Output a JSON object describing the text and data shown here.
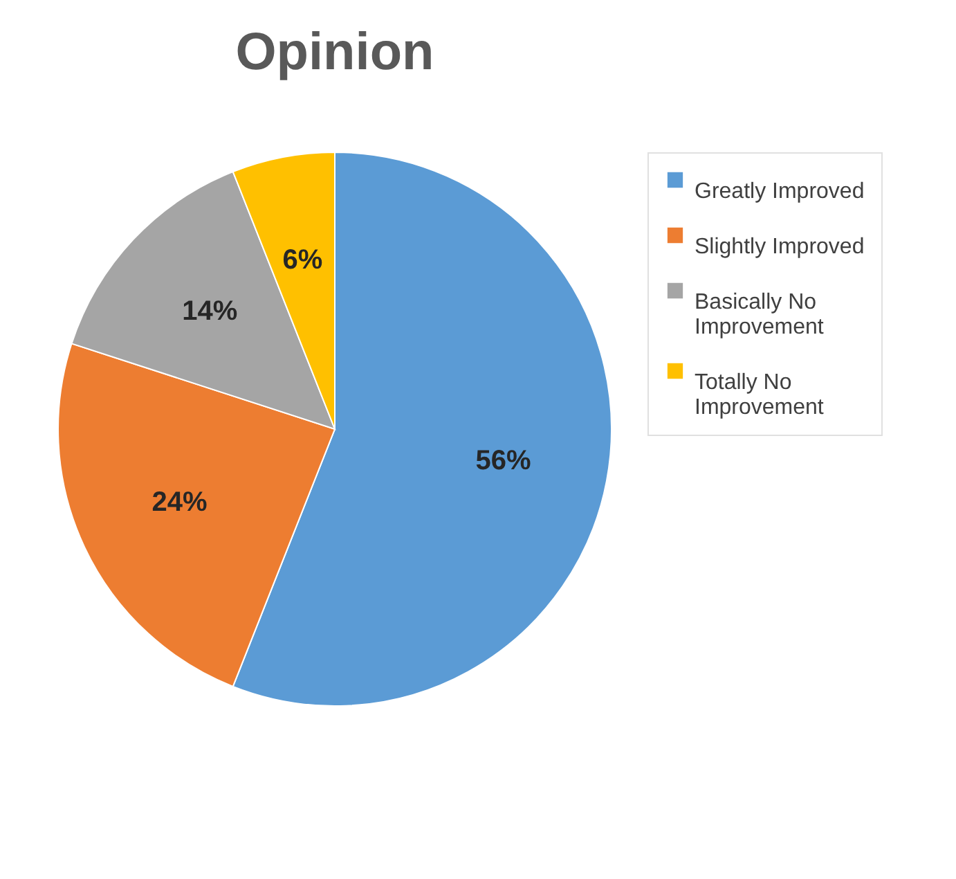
{
  "chart_data": {
    "type": "pie",
    "title": "Opinion",
    "categories": [
      "Greatly Improved",
      "Slightly Improved",
      "Basically No Improvement",
      "Totally No Improvement"
    ],
    "values": [
      56,
      24,
      14,
      6
    ],
    "colors": [
      "#5b9bd5",
      "#ed7d31",
      "#a5a5a5",
      "#ffc000"
    ],
    "value_labels": [
      "56%",
      "24%",
      "14%",
      "6%"
    ],
    "legend": "right"
  }
}
